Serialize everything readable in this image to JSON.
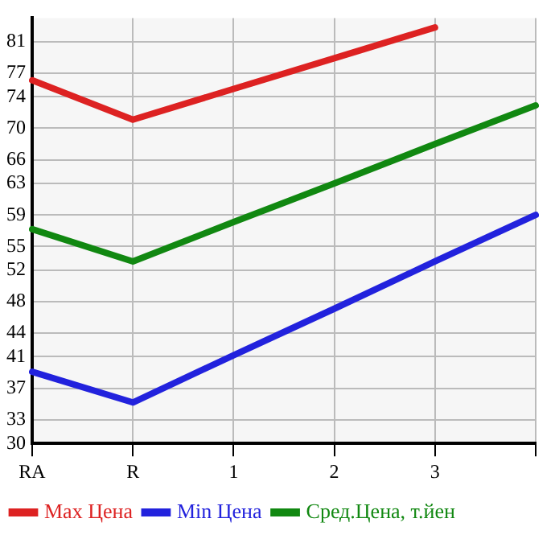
{
  "chart_data": {
    "type": "line",
    "categories": [
      "RA",
      "R",
      "1",
      "2",
      "3",
      null
    ],
    "series": [
      {
        "name": "Max Цена",
        "color": "#dd2222",
        "values": [
          76.1,
          71.1,
          75.0,
          78.9,
          82.8,
          null
        ]
      },
      {
        "name": "Min Цена",
        "color": "#2222dd",
        "values": [
          39.1,
          35.2,
          41.2,
          47.1,
          53.1,
          59.0
        ]
      },
      {
        "name": "Сред.Цена, т.йен",
        "color": "#118811",
        "values": [
          57.2,
          53.1,
          58.1,
          63.0,
          68.0,
          72.9
        ]
      }
    ],
    "ylim": [
      30,
      84
    ],
    "yticks": [
      30,
      33,
      37,
      41,
      44,
      48,
      52,
      55,
      59,
      63,
      66,
      70,
      74,
      77,
      81
    ],
    "grid": true,
    "legend": "bottom",
    "marker": "none",
    "line_style": "solid"
  }
}
